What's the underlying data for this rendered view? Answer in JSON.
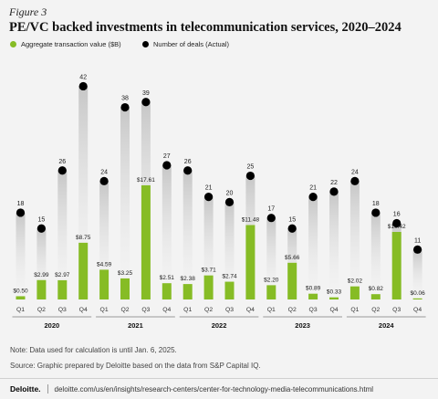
{
  "header": {
    "figure_label": "Figure 3",
    "title": "PE/VC backed investments in telecommunication services, 2020–2024"
  },
  "legend": {
    "value_label": "Aggregate transaction value ($B)",
    "deals_label": "Number of deals (Actual)"
  },
  "colors": {
    "value_bar": "#86bc25",
    "deal_dot": "#000000",
    "deal_shadow": "#c9c9c9",
    "background": "#f3f3f3"
  },
  "chart_data": {
    "type": "bar",
    "categories": [
      "Q1",
      "Q2",
      "Q3",
      "Q4",
      "Q1",
      "Q2",
      "Q3",
      "Q4",
      "Q1",
      "Q2",
      "Q3",
      "Q4",
      "Q1",
      "Q2",
      "Q3",
      "Q4",
      "Q1",
      "Q2",
      "Q3",
      "Q4"
    ],
    "years": [
      "2020",
      "2021",
      "2022",
      "2023",
      "2024"
    ],
    "series": [
      {
        "name": "Aggregate transaction value ($B)",
        "values": [
          0.5,
          2.99,
          2.97,
          8.75,
          4.59,
          3.25,
          17.61,
          2.51,
          2.38,
          3.71,
          2.74,
          11.48,
          2.2,
          5.66,
          0.89,
          0.33,
          2.02,
          0.82,
          10.42,
          0.06
        ],
        "labels": [
          "$0.50",
          "$2.99",
          "$2.97",
          "$8.75",
          "$4.59",
          "$3.25",
          "$17.61",
          "$2.51",
          "$2.38",
          "$3.71",
          "$2.74",
          "$11.48",
          "$2.20",
          "$5.66",
          "$0.89",
          "$0.33",
          "$2.02",
          "$0.82",
          "$10.42",
          "$0.06"
        ]
      },
      {
        "name": "Number of deals (Actual)",
        "values": [
          18,
          15,
          26,
          42,
          24,
          38,
          39,
          27,
          26,
          21,
          20,
          25,
          17,
          15,
          21,
          22,
          24,
          18,
          16,
          11
        ]
      }
    ]
  },
  "notes": {
    "note1": "Note: Data used for calculation is until Jan. 6, 2025.",
    "note2": "Source: Graphic prepared by Deloitte based on the data from S&P Capital IQ."
  },
  "footer": {
    "brand": "Deloitte.",
    "url": "deloitte.com/us/en/insights/research-centers/center-for-technology-media-telecommunications.html"
  }
}
